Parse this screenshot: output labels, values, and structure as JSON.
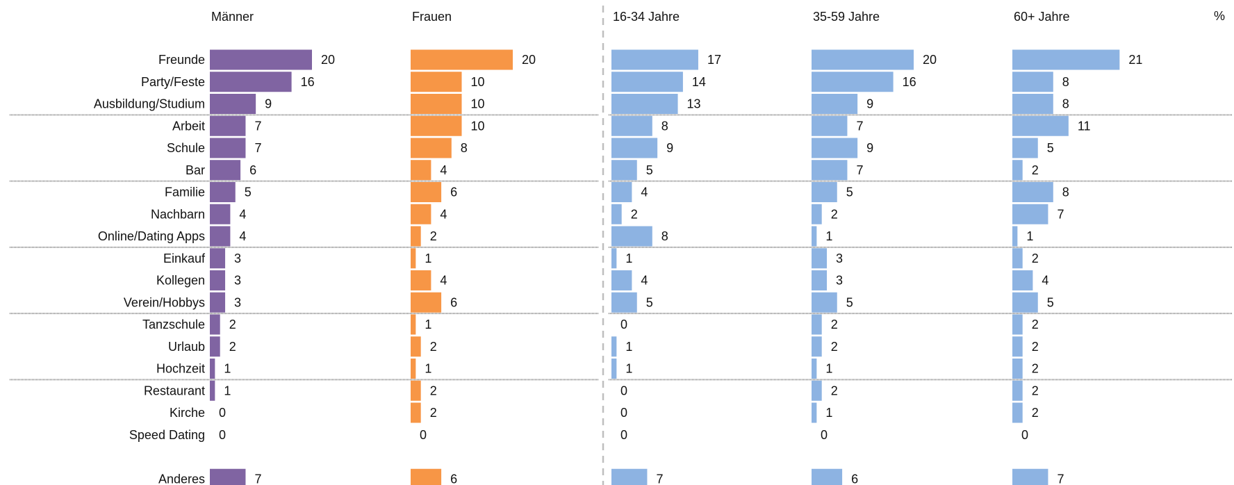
{
  "chart_data": {
    "type": "bar",
    "orientation": "horizontal",
    "unit_label": "%",
    "categories": [
      "Freunde",
      "Party/Feste",
      "Ausbildung/Studium",
      "Arbeit",
      "Schule",
      "Bar",
      "Familie",
      "Nachbarn",
      "Online/Dating Apps",
      "Einkauf",
      "Kollegen",
      "Verein/Hobbys",
      "Tanzschule",
      "Urlaub",
      "Hochzeit",
      "Restaurant",
      "Kirche",
      "Speed Dating",
      "Anderes"
    ],
    "series": [
      {
        "name": "Männer",
        "color": "#8064a2",
        "values": [
          20,
          16,
          9,
          7,
          7,
          6,
          5,
          4,
          4,
          3,
          3,
          3,
          2,
          2,
          1,
          1,
          0,
          0,
          7
        ]
      },
      {
        "name": "Frauen",
        "color": "#f79646",
        "values": [
          20,
          10,
          10,
          10,
          8,
          4,
          6,
          4,
          2,
          1,
          4,
          6,
          1,
          2,
          1,
          2,
          2,
          0,
          6
        ]
      },
      {
        "name": "16-34 Jahre",
        "color": "#8db3e2",
        "values": [
          17,
          14,
          13,
          8,
          9,
          5,
          4,
          2,
          8,
          1,
          4,
          5,
          0,
          1,
          1,
          0,
          0,
          0,
          7
        ]
      },
      {
        "name": "35-59 Jahre",
        "color": "#8db3e2",
        "values": [
          20,
          16,
          9,
          7,
          9,
          7,
          5,
          2,
          1,
          3,
          3,
          5,
          2,
          2,
          1,
          2,
          1,
          0,
          6
        ]
      },
      {
        "name": "60+ Jahre",
        "color": "#8db3e2",
        "values": [
          21,
          8,
          8,
          11,
          5,
          2,
          8,
          7,
          1,
          2,
          4,
          5,
          2,
          2,
          2,
          2,
          2,
          0,
          7
        ]
      }
    ],
    "group_separators_after": [
      "Ausbildung/Studium",
      "Bar",
      "Online/Dating Apps",
      "Verein/Hobbys",
      "Hochzeit"
    ],
    "vertical_divider_after_series": "Frauen",
    "gridlines": false,
    "legend": "none"
  }
}
